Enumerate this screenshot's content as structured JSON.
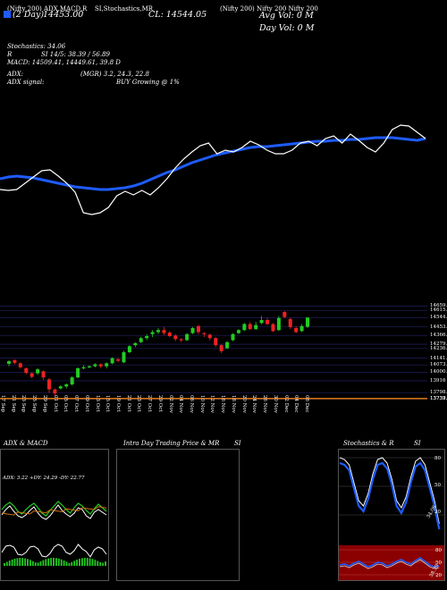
{
  "header": {
    "top_labels": [
      "(Nifty 200) ADX,MACD,R",
      "SI,Stochastics,MR",
      "(Nifty 200) Nifty 200 Nifty 200"
    ],
    "period": "(2 Day)",
    "open_label": "14453.00",
    "close_label": "CL: 14544.05",
    "avg_vol": "Avg Vol: 0  M",
    "day_vol": "Day Vol: 0  M"
  },
  "indicators": {
    "stochastics": "Stochastics: 34.06",
    "rsi": "SI 14/5: 38.39 / 56.89",
    "r_label": "R",
    "macd": "MACD: 14509.41,  14449.61, 39.8  D",
    "adx_label": "ADX:",
    "adx_values": "(MGR) 3.2, 24.3, 22.8",
    "adx_signal_label": "ADX  signal:",
    "adx_signal": "BUY Growing @ 1%"
  },
  "colors": {
    "background": "#000000",
    "ma_line": "#1e5cff",
    "price_line": "#ffffff",
    "up_candle": "#22cc22",
    "down_candle": "#ee2222",
    "support_line": "#d07010",
    "grid": "#1c1c55",
    "rsi_bg": "#8b0000"
  },
  "chart_data": {
    "type": "candlestick",
    "dates": [
      "17 Sep",
      "21 Sep",
      "23 Sep",
      "25 Sep",
      "29 Sep",
      "01 Oct",
      "05 Oct",
      "07 Oct",
      "09 Oct",
      "13 Oct",
      "15 Oct",
      "19 Oct",
      "21 Oct",
      "23 Oct",
      "27 Oct",
      "29 Oct",
      "02 Nov",
      "04 Nov",
      "06 Nov",
      "10 Nov",
      "12 Nov",
      "16 Nov",
      "18 Nov",
      "20 Nov",
      "24 Nov",
      "26 Nov",
      "30 Nov",
      "02 Dec",
      "04 Dec",
      "08 Dec"
    ],
    "price_ticks": [
      "14659.55",
      "14615.48",
      "14544.05",
      "14453.2",
      "14366.66",
      "14279.52",
      "14236.6",
      "14141.63",
      "14073.3",
      "14000.63",
      "13916",
      "13798.7",
      "13739.85",
      "13737.15",
      "13733.85"
    ],
    "support_level": "13739.85",
    "candles": [
      {
        "open": 14085,
        "close": 14110,
        "high": 14120,
        "low": 14060
      },
      {
        "open": 14120,
        "close": 14095,
        "high": 14130,
        "low": 14080
      },
      {
        "open": 14090,
        "close": 14050,
        "high": 14100,
        "low": 14035
      },
      {
        "open": 14040,
        "close": 13995,
        "high": 14050,
        "low": 13980
      },
      {
        "open": 13990,
        "close": 13955,
        "high": 14000,
        "low": 13940
      },
      {
        "open": 13990,
        "close": 14030,
        "high": 14040,
        "low": 13975
      },
      {
        "open": 14010,
        "close": 13950,
        "high": 14020,
        "low": 13925
      },
      {
        "open": 13930,
        "close": 13830,
        "high": 13945,
        "low": 13795
      },
      {
        "open": 13830,
        "close": 13790,
        "high": 13840,
        "low": 13760
      },
      {
        "open": 13840,
        "close": 13860,
        "high": 13870,
        "low": 13830
      },
      {
        "open": 13860,
        "close": 13880,
        "high": 13890,
        "low": 13840
      },
      {
        "open": 13880,
        "close": 13950,
        "high": 13960,
        "low": 13870
      },
      {
        "open": 13950,
        "close": 14040,
        "high": 14050,
        "low": 13940
      },
      {
        "open": 14040,
        "close": 14050,
        "high": 14070,
        "low": 14030
      },
      {
        "open": 14050,
        "close": 14060,
        "high": 14070,
        "low": 14040
      },
      {
        "open": 14060,
        "close": 14080,
        "high": 14090,
        "low": 14050
      },
      {
        "open": 14080,
        "close": 14060,
        "high": 14090,
        "low": 14040
      },
      {
        "open": 14060,
        "close": 14090,
        "high": 14100,
        "low": 14040
      },
      {
        "open": 14090,
        "close": 14140,
        "high": 14150,
        "low": 14080
      },
      {
        "open": 14130,
        "close": 14115,
        "high": 14145,
        "low": 14100
      },
      {
        "open": 14100,
        "close": 14200,
        "high": 14215,
        "low": 14090
      },
      {
        "open": 14200,
        "close": 14260,
        "high": 14270,
        "low": 14190
      },
      {
        "open": 14270,
        "close": 14290,
        "high": 14300,
        "low": 14250
      },
      {
        "open": 14300,
        "close": 14340,
        "high": 14355,
        "low": 14290
      },
      {
        "open": 14340,
        "close": 14360,
        "high": 14380,
        "low": 14320
      },
      {
        "open": 14380,
        "close": 14400,
        "high": 14420,
        "low": 14350
      },
      {
        "open": 14400,
        "close": 14420,
        "high": 14440,
        "low": 14380
      },
      {
        "open": 14420,
        "close": 14390,
        "high": 14450,
        "low": 14370
      },
      {
        "open": 14395,
        "close": 14360,
        "high": 14410,
        "low": 14350
      },
      {
        "open": 14365,
        "close": 14330,
        "high": 14380,
        "low": 14310
      },
      {
        "open": 14330,
        "close": 14320,
        "high": 14340,
        "low": 14300
      },
      {
        "open": 14320,
        "close": 14380,
        "high": 14390,
        "low": 14310
      },
      {
        "open": 14390,
        "close": 14440,
        "high": 14450,
        "low": 14380
      },
      {
        "open": 14460,
        "close": 14400,
        "high": 14470,
        "low": 14380
      },
      {
        "open": 14390,
        "close": 14380,
        "high": 14400,
        "low": 14350
      },
      {
        "open": 14375,
        "close": 14340,
        "high": 14385,
        "low": 14320
      },
      {
        "open": 14340,
        "close": 14270,
        "high": 14350,
        "low": 14250
      },
      {
        "open": 14270,
        "close": 14210,
        "high": 14280,
        "low": 14190
      },
      {
        "open": 14240,
        "close": 14300,
        "high": 14310,
        "low": 14230
      },
      {
        "open": 14320,
        "close": 14380,
        "high": 14390,
        "low": 14310
      },
      {
        "open": 14390,
        "close": 14420,
        "high": 14430,
        "low": 14380
      },
      {
        "open": 14420,
        "close": 14480,
        "high": 14490,
        "low": 14410
      },
      {
        "open": 14480,
        "close": 14430,
        "high": 14500,
        "low": 14420
      },
      {
        "open": 14430,
        "close": 14470,
        "high": 14500,
        "low": 14420
      },
      {
        "open": 14490,
        "close": 14520,
        "high": 14560,
        "low": 14480
      },
      {
        "open": 14520,
        "close": 14480,
        "high": 14540,
        "low": 14470
      },
      {
        "open": 14480,
        "close": 14410,
        "high": 14490,
        "low": 14400
      },
      {
        "open": 14420,
        "close": 14540,
        "high": 14560,
        "low": 14410
      },
      {
        "open": 14600,
        "close": 14550,
        "high": 14610,
        "low": 14540
      },
      {
        "open": 14530,
        "close": 14450,
        "high": 14540,
        "low": 14430
      },
      {
        "open": 14440,
        "close": 14400,
        "high": 14460,
        "low": 14390
      },
      {
        "open": 14410,
        "close": 14460,
        "high": 14480,
        "low": 14400
      },
      {
        "open": 14453,
        "close": 14544,
        "high": 14550,
        "low": 14440
      }
    ],
    "price_line": [
      212,
      213,
      212,
      205,
      198,
      191,
      190,
      197,
      205,
      215,
      238,
      240,
      238,
      232,
      219,
      214,
      218,
      213,
      218,
      210,
      200,
      188,
      178,
      170,
      163,
      160,
      172,
      168,
      170,
      165,
      158,
      162,
      168,
      172,
      172,
      168,
      160,
      158,
      163,
      155,
      152,
      160,
      150,
      157,
      165,
      170,
      160,
      145,
      140,
      141,
      148,
      155
    ],
    "ma_line": [
      200,
      198,
      197,
      198,
      199,
      201,
      203,
      205,
      207,
      209,
      210,
      211,
      212,
      212,
      211,
      210,
      208,
      205,
      201,
      197,
      193,
      190,
      186,
      182,
      179,
      176,
      173,
      171,
      169,
      167,
      165,
      164,
      164,
      163,
      162,
      161,
      160,
      159,
      158,
      158,
      157,
      157,
      156,
      156,
      155,
      154,
      154,
      154,
      155,
      156,
      157,
      155
    ],
    "sub_panels": [
      {
        "title": "ADX  & MACD",
        "values": "ADX: 3.22  +DY: 24.29  -DY: 22.77"
      },
      {
        "title": "Intra  Day Trading Price  & MR",
        "suffix": "SI"
      },
      {
        "title": "Stochastics & R",
        "suffix": "SI",
        "ticks": [
          "80",
          "50",
          "20"
        ],
        "label_value": "34.06",
        "rsi_value": "38.39",
        "rsi_ticks": [
          "80",
          "50",
          "20"
        ]
      }
    ]
  }
}
